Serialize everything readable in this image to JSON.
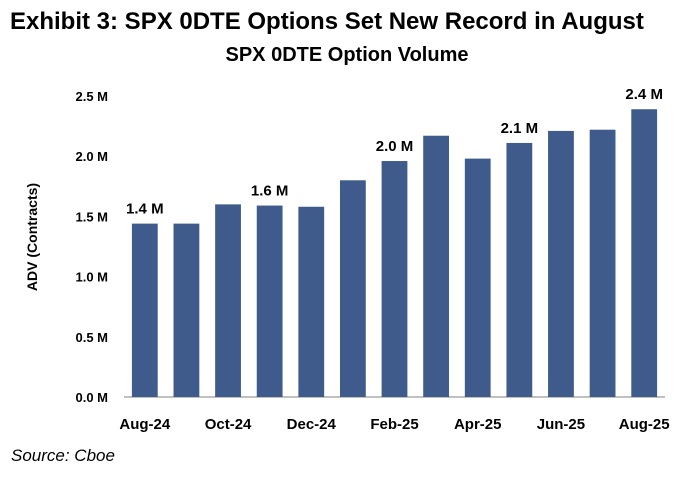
{
  "header": {
    "exhibit_title": "Exhibit 3: SPX 0DTE Options Set New Record in August"
  },
  "footer": {
    "source": "Source: Cboe"
  },
  "chart_data": {
    "type": "bar",
    "title": "SPX 0DTE Option Volume",
    "xlabel": "",
    "ylabel": "ADV (Contracts)",
    "ylim": [
      0,
      2.5
    ],
    "yticks": [
      {
        "value": 0.0,
        "label": "0.0 M"
      },
      {
        "value": 0.5,
        "label": "0.5 M"
      },
      {
        "value": 1.0,
        "label": "1.0 M"
      },
      {
        "value": 1.5,
        "label": "1.5 M"
      },
      {
        "value": 2.0,
        "label": "2.0 M"
      },
      {
        "value": 2.5,
        "label": "2.5 M"
      }
    ],
    "categories": [
      "Aug-24",
      "Sep-24",
      "Oct-24",
      "Nov-24",
      "Dec-24",
      "Jan-25",
      "Feb-25",
      "Mar-25",
      "Apr-25",
      "May-25",
      "Jun-25",
      "Jul-25",
      "Aug-25"
    ],
    "tick_labels": [
      "Aug-24",
      "",
      "Oct-24",
      "",
      "Dec-24",
      "",
      "Feb-25",
      "",
      "Apr-25",
      "",
      "Jun-25",
      "",
      "Aug-25"
    ],
    "values": [
      1.44,
      1.44,
      1.6,
      1.59,
      1.58,
      1.8,
      1.96,
      2.17,
      1.98,
      2.11,
      2.21,
      2.22,
      2.39
    ],
    "data_labels": [
      "1.4 M",
      "",
      "",
      "1.6 M",
      "",
      "",
      "2.0 M",
      "",
      "",
      "2.1 M",
      "",
      "",
      "2.4 M"
    ],
    "bar_color": "#3f5b8c",
    "grid": false,
    "legend": "none"
  }
}
